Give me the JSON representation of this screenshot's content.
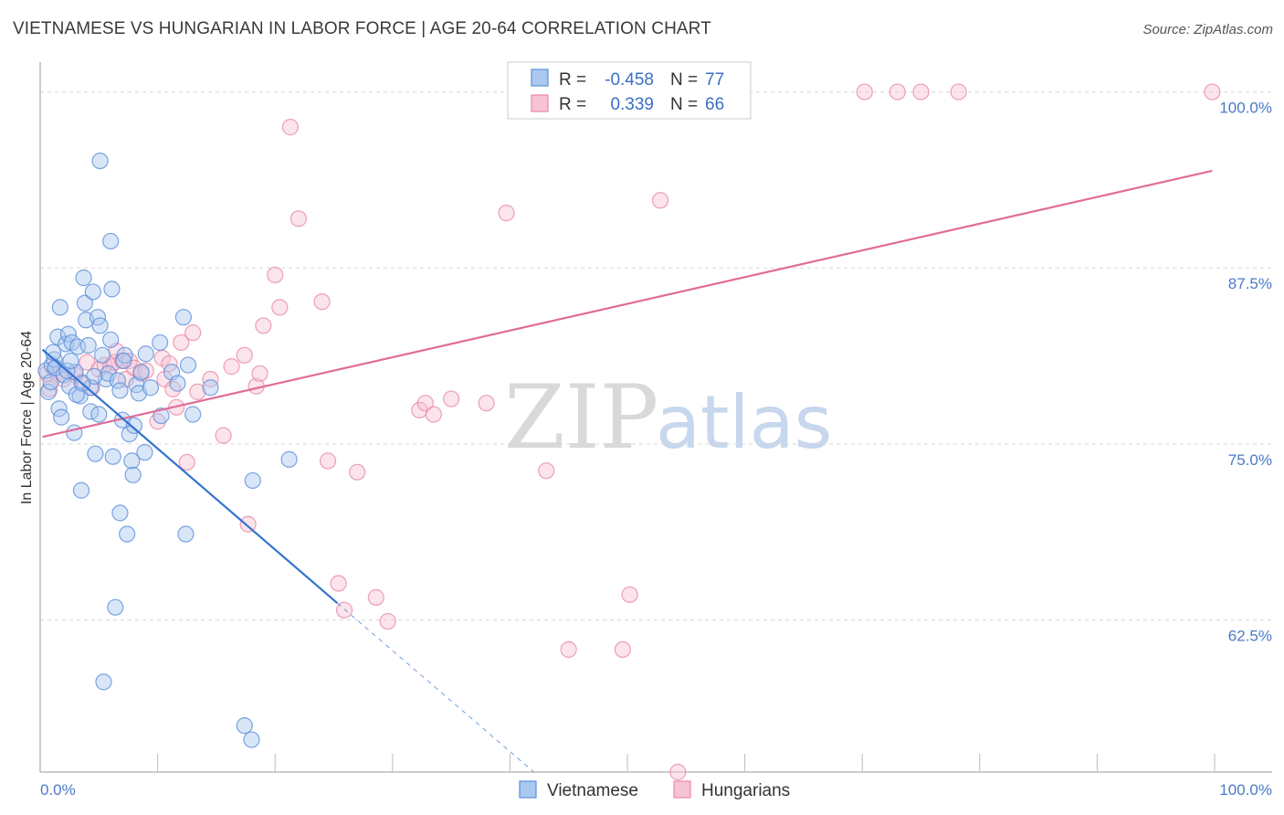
{
  "title": "VIETNAMESE VS HUNGARIAN IN LABOR FORCE | AGE 20-64 CORRELATION CHART",
  "source": "Source: ZipAtlas.com",
  "watermark": {
    "zip": "ZIP",
    "atlas": "atlas"
  },
  "colors": {
    "vietnamese": "#5b8fd9",
    "vietnamese_fill": "#aac8f0",
    "hungarians": "#e888a8",
    "hungarians_fill": "#f6c3d3",
    "viet_line": "#3473cf",
    "hung_line": "#e06c96",
    "grid": "#d8d8d8",
    "tick_text": "#4a7ac8"
  },
  "legend": {
    "r_label": "R =",
    "n_label": "N =",
    "vietnamese": {
      "r": "-0.458",
      "n": "77"
    },
    "hungarians": {
      "r": "0.339",
      "n": "66"
    }
  },
  "chart_data": {
    "type": "scatter",
    "title": "VIETNAMESE VS HUNGARIAN IN LABOR FORCE | AGE 20-64 CORRELATION CHART",
    "xlabel": "",
    "ylabel": "In Labor Force | Age 20-64",
    "xlim": [
      0,
      100
    ],
    "ylim": [
      51.7,
      101.4
    ],
    "x_tick_labels": [
      "0.0%",
      "100.0%"
    ],
    "y_ticks": [
      62.5,
      75.0,
      87.5,
      100.0
    ],
    "y_tick_labels": [
      "62.5%",
      "75.0%",
      "87.5%",
      "100.0%"
    ],
    "grid": true,
    "legend_position": "top-center",
    "series": [
      {
        "name": "Vietnamese",
        "r": -0.458,
        "n": 77,
        "trend": {
          "x0": 0.2,
          "y0": 81.7,
          "x1": 25.3,
          "y1": 63.7,
          "dash_to_x": 45.0
        },
        "points": [
          [
            0.5,
            80.2
          ],
          [
            0.7,
            78.7
          ],
          [
            0.9,
            79.4
          ],
          [
            1.0,
            80.6
          ],
          [
            1.2,
            81.0
          ],
          [
            1.3,
            80.4
          ],
          [
            1.5,
            82.6
          ],
          [
            1.6,
            77.5
          ],
          [
            1.8,
            76.9
          ],
          [
            2.0,
            79.9
          ],
          [
            1.7,
            84.7
          ],
          [
            2.2,
            82.1
          ],
          [
            2.4,
            82.8
          ],
          [
            2.5,
            79.1
          ],
          [
            2.7,
            82.2
          ],
          [
            2.9,
            75.8
          ],
          [
            3.0,
            80.1
          ],
          [
            3.2,
            81.9
          ],
          [
            3.4,
            78.4
          ],
          [
            3.5,
            71.7
          ],
          [
            3.7,
            86.8
          ],
          [
            3.8,
            85.0
          ],
          [
            3.9,
            83.8
          ],
          [
            4.1,
            82.0
          ],
          [
            4.3,
            79.0
          ],
          [
            4.3,
            77.3
          ],
          [
            4.5,
            85.8
          ],
          [
            4.7,
            74.3
          ],
          [
            4.9,
            84.0
          ],
          [
            5.1,
            83.4
          ],
          [
            5.3,
            81.3
          ],
          [
            5.4,
            58.1
          ],
          [
            5.6,
            79.6
          ],
          [
            5.8,
            80.0
          ],
          [
            6.0,
            82.4
          ],
          [
            6.2,
            74.1
          ],
          [
            6.4,
            63.4
          ],
          [
            6.6,
            79.5
          ],
          [
            6.8,
            70.1
          ],
          [
            7.0,
            76.7
          ],
          [
            7.2,
            81.3
          ],
          [
            7.4,
            68.6
          ],
          [
            7.6,
            75.7
          ],
          [
            7.8,
            73.8
          ],
          [
            7.9,
            72.8
          ],
          [
            8.2,
            79.2
          ],
          [
            8.4,
            78.6
          ],
          [
            8.6,
            80.1
          ],
          [
            8.9,
            74.4
          ],
          [
            9.0,
            81.4
          ],
          [
            9.4,
            79.0
          ],
          [
            10.2,
            82.2
          ],
          [
            10.3,
            77.0
          ],
          [
            11.2,
            80.1
          ],
          [
            11.7,
            79.3
          ],
          [
            12.2,
            84.0
          ],
          [
            12.6,
            80.6
          ],
          [
            13.0,
            77.1
          ],
          [
            14.5,
            79.0
          ],
          [
            12.4,
            68.6
          ],
          [
            18.1,
            72.4
          ],
          [
            17.4,
            55.0
          ],
          [
            18.0,
            54.0
          ],
          [
            21.2,
            73.9
          ],
          [
            6.0,
            89.4
          ],
          [
            5.1,
            95.1
          ],
          [
            6.1,
            86.0
          ],
          [
            3.1,
            78.5
          ],
          [
            4.6,
            79.8
          ],
          [
            6.8,
            78.8
          ],
          [
            1.1,
            81.5
          ],
          [
            2.3,
            80.2
          ],
          [
            3.6,
            79.3
          ],
          [
            5.0,
            77.1
          ],
          [
            7.1,
            80.9
          ],
          [
            8.0,
            76.3
          ],
          [
            2.6,
            80.9
          ]
        ]
      },
      {
        "name": "Hungarians",
        "r": 0.339,
        "n": 66,
        "trend": {
          "x0": 0.2,
          "y0": 75.5,
          "x1": 99.8,
          "y1": 94.4
        },
        "points": [
          [
            0.6,
            80.0
          ],
          [
            0.8,
            78.9
          ],
          [
            1.2,
            80.3
          ],
          [
            1.5,
            80.0
          ],
          [
            2.0,
            79.6
          ],
          [
            3.0,
            79.9
          ],
          [
            3.5,
            79.4
          ],
          [
            4.0,
            80.8
          ],
          [
            4.4,
            79.0
          ],
          [
            5.0,
            80.3
          ],
          [
            5.5,
            80.6
          ],
          [
            6.0,
            80.5
          ],
          [
            6.3,
            80.8
          ],
          [
            6.5,
            81.6
          ],
          [
            7.0,
            80.9
          ],
          [
            7.3,
            79.6
          ],
          [
            7.6,
            80.9
          ],
          [
            8.0,
            80.4
          ],
          [
            8.6,
            80.0
          ],
          [
            9.0,
            80.2
          ],
          [
            10.0,
            76.6
          ],
          [
            10.4,
            81.1
          ],
          [
            10.6,
            79.6
          ],
          [
            11.0,
            80.7
          ],
          [
            11.3,
            78.9
          ],
          [
            11.6,
            77.6
          ],
          [
            12.0,
            82.2
          ],
          [
            12.5,
            73.7
          ],
          [
            13.0,
            82.9
          ],
          [
            13.4,
            78.7
          ],
          [
            14.5,
            79.6
          ],
          [
            15.6,
            75.6
          ],
          [
            16.3,
            80.5
          ],
          [
            17.4,
            81.3
          ],
          [
            17.7,
            69.3
          ],
          [
            18.4,
            79.1
          ],
          [
            18.7,
            80.0
          ],
          [
            19.0,
            83.4
          ],
          [
            20.0,
            87.0
          ],
          [
            20.4,
            84.7
          ],
          [
            21.3,
            97.5
          ],
          [
            22.0,
            91.0
          ],
          [
            24.0,
            85.1
          ],
          [
            24.5,
            73.8
          ],
          [
            25.4,
            65.1
          ],
          [
            25.9,
            63.2
          ],
          [
            27.0,
            73.0
          ],
          [
            28.6,
            64.1
          ],
          [
            29.6,
            62.4
          ],
          [
            32.3,
            77.4
          ],
          [
            32.8,
            77.9
          ],
          [
            33.5,
            77.1
          ],
          [
            35.0,
            78.2
          ],
          [
            38.0,
            77.9
          ],
          [
            39.7,
            91.4
          ],
          [
            43.1,
            73.1
          ],
          [
            45.0,
            60.4
          ],
          [
            49.6,
            60.4
          ],
          [
            50.2,
            64.3
          ],
          [
            52.8,
            92.3
          ],
          [
            54.3,
            51.7
          ],
          [
            70.2,
            100.0
          ],
          [
            73.0,
            100.0
          ],
          [
            75.0,
            100.0
          ],
          [
            78.2,
            100.0
          ],
          [
            99.8,
            100.0
          ]
        ]
      }
    ]
  },
  "bottom_legend": {
    "vietnamese": "Vietnamese",
    "hungarians": "Hungarians"
  }
}
